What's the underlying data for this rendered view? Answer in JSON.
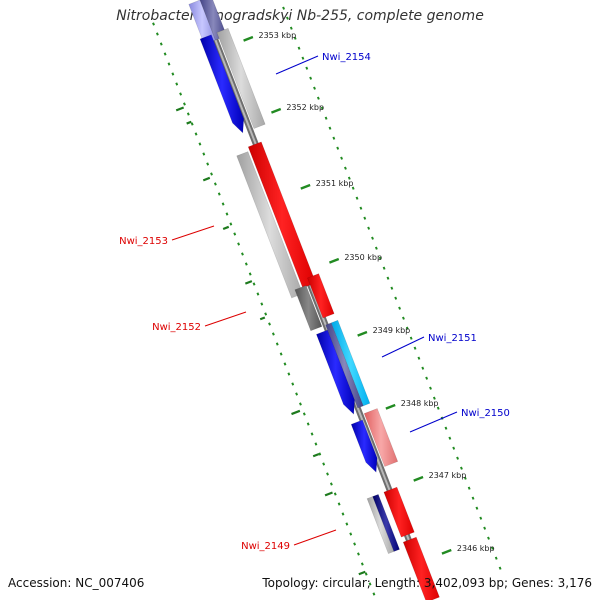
{
  "title": "Nitrobacter winogradskyi Nb-255, complete genome",
  "footer": {
    "accession": "Accession: NC_007406",
    "summary": "Topology: circular; Length: 3,402,093 bp; Genes: 3,176"
  },
  "colors": {
    "forward_strand_genes": "#ff0000",
    "reverse_strand_genes": "#0000ff",
    "backbone": "#888888",
    "gc_ticks": "#228B22"
  },
  "ticks": [
    {
      "label": "2353 kbp"
    },
    {
      "label": "2352 kbp"
    },
    {
      "label": "2351 kbp"
    },
    {
      "label": "2350 kbp"
    },
    {
      "label": "2349 kbp"
    },
    {
      "label": "2348 kbp"
    },
    {
      "label": "2347 kbp"
    },
    {
      "label": "2346 kbp"
    }
  ],
  "genes": [
    {
      "name": "Nwi_2154",
      "color": "#0000cc"
    },
    {
      "name": "Nwi_2153",
      "color": "#dd0000"
    },
    {
      "name": "Nwi_2152",
      "color": "#dd0000"
    },
    {
      "name": "Nwi_2151",
      "color": "#0000cc"
    },
    {
      "name": "Nwi_2150",
      "color": "#0000cc"
    },
    {
      "name": "Nwi_2149",
      "color": "#dd0000"
    }
  ]
}
